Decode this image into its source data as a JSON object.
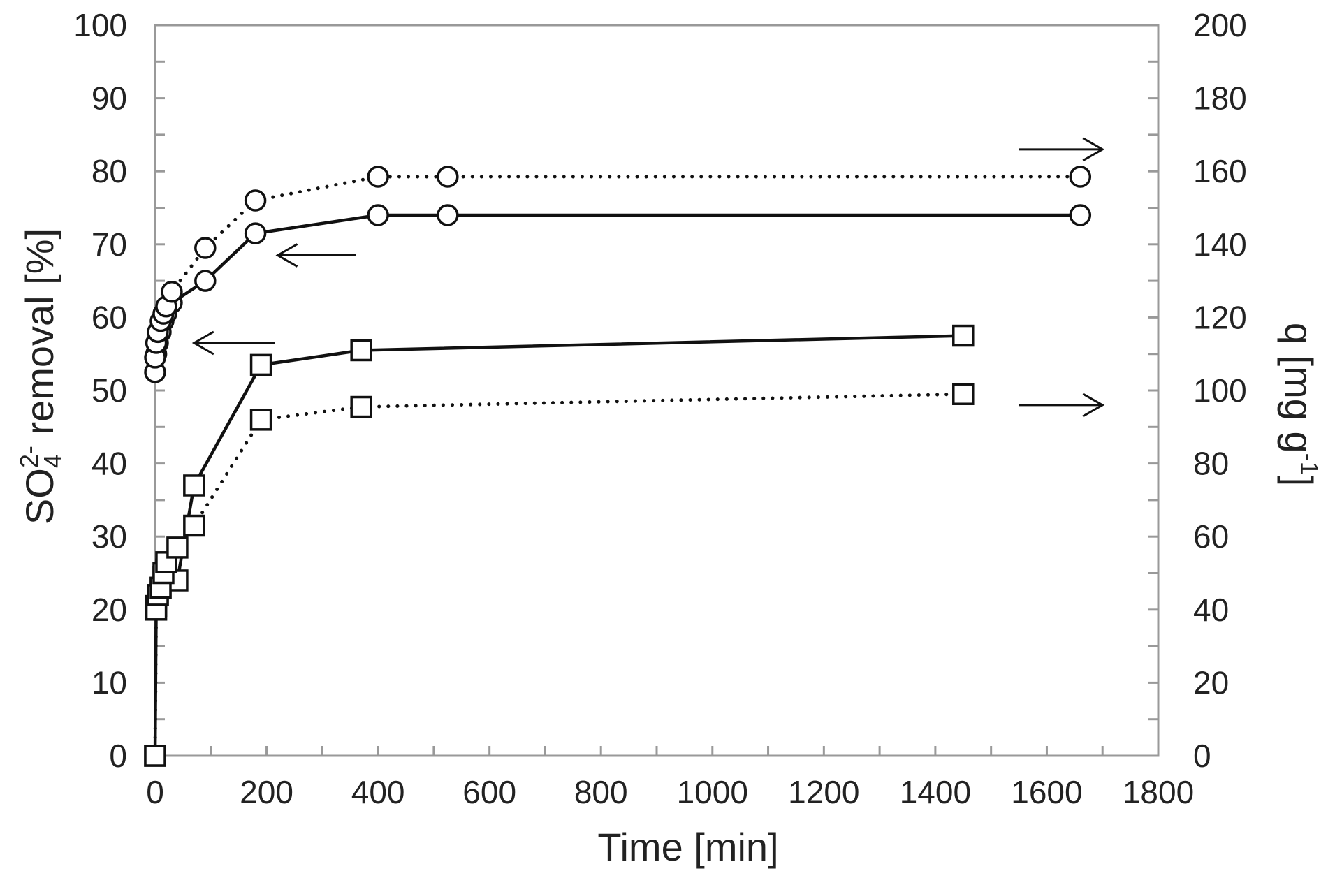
{
  "chart_data": {
    "type": "line",
    "xlabel": "Time [min]",
    "ylabel_left": {
      "main": "SO",
      "sub": "4",
      "sup": "2-",
      "rest": " removal [%]"
    },
    "ylabel_right": {
      "main": "q [mg g",
      "sup": "-1",
      "rest": "]"
    },
    "xlim": [
      0,
      1800
    ],
    "ylim_left": [
      0,
      100
    ],
    "ylim_right": [
      0,
      200
    ],
    "x_ticks": [
      0,
      200,
      400,
      600,
      800,
      1000,
      1200,
      1400,
      1600,
      1800
    ],
    "y_left_ticks": [
      0,
      10,
      20,
      30,
      40,
      50,
      60,
      70,
      80,
      90,
      100
    ],
    "y_right_ticks": [
      0,
      20,
      40,
      60,
      80,
      100,
      120,
      140,
      160,
      180,
      200
    ],
    "grid": false,
    "series": [
      {
        "marker": "circle",
        "line": "solid",
        "axis": "left",
        "x": [
          0,
          2,
          5,
          10,
          15,
          20,
          30,
          90,
          180,
          400,
          525,
          1660
        ],
        "y": [
          52.5,
          55,
          56.5,
          58,
          59.5,
          60.5,
          62,
          65,
          71.5,
          74,
          74,
          74
        ]
      },
      {
        "marker": "circle",
        "line": "dotted",
        "axis": "right",
        "x": [
          0,
          2,
          5,
          10,
          15,
          20,
          30,
          90,
          180,
          400,
          525,
          1660
        ],
        "y": [
          109,
          113,
          116,
          119,
          121,
          123,
          127,
          139,
          152,
          158.5,
          158.5,
          158.5
        ]
      },
      {
        "marker": "square",
        "line": "solid",
        "axis": "left",
        "x": [
          0,
          2,
          5,
          10,
          15,
          20,
          40,
          70,
          190,
          370,
          1450
        ],
        "y": [
          0,
          20.5,
          22,
          23,
          24.5,
          25.5,
          24,
          37,
          53.5,
          55.5,
          57.5
        ]
      },
      {
        "marker": "square",
        "line": "dotted",
        "axis": "right",
        "x": [
          0,
          2,
          5,
          10,
          15,
          20,
          40,
          70,
          190,
          370,
          1450
        ],
        "y": [
          0,
          40,
          44,
          46,
          50,
          53,
          57,
          63,
          92,
          95.5,
          99
        ]
      }
    ],
    "annotations": [
      {
        "type": "arrow",
        "direction": "right",
        "x": [
          1550,
          1700
        ],
        "y": 83,
        "axis": "left"
      },
      {
        "type": "arrow",
        "direction": "left",
        "x": [
          360,
          220
        ],
        "y": 68.5,
        "axis": "left"
      },
      {
        "type": "arrow",
        "direction": "left",
        "x": [
          215,
          70
        ],
        "y": 56.5,
        "axis": "left"
      },
      {
        "type": "arrow",
        "direction": "right",
        "x": [
          1550,
          1700
        ],
        "y": 48,
        "axis": "left"
      }
    ]
  }
}
